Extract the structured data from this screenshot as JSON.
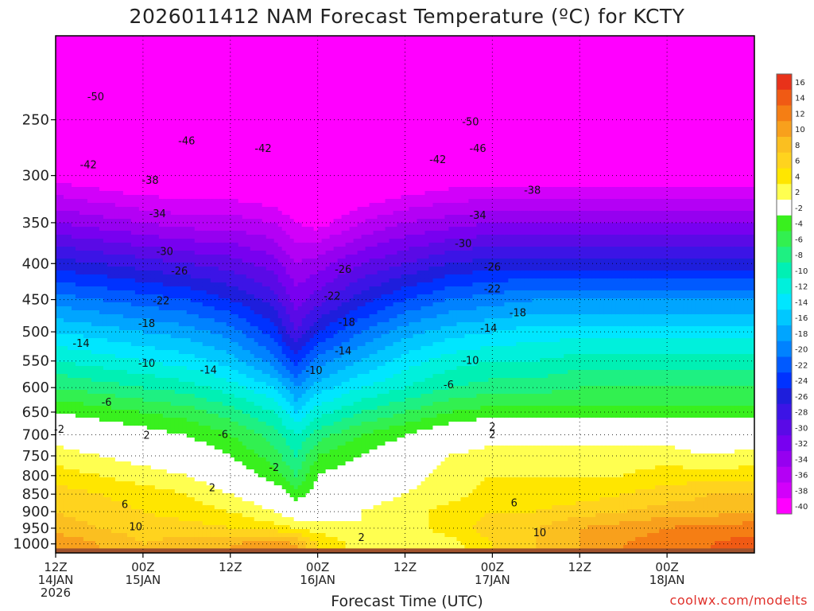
{
  "chart_data": {
    "type": "heatmap",
    "title": "2026011412 NAM Forecast Temperature (ºC) for KCTY",
    "xlabel": "Forecast Time (UTC)",
    "ylabel": "",
    "credit": "coolwx.com/modelts",
    "y_ticks": [
      250,
      300,
      350,
      400,
      450,
      500,
      550,
      600,
      650,
      700,
      750,
      800,
      850,
      900,
      950,
      1000
    ],
    "x_ticks": [
      {
        "line1": "12Z",
        "line2": "14JAN",
        "line3": "2026"
      },
      {
        "line1": "00Z",
        "line2": "15JAN",
        "line3": ""
      },
      {
        "line1": "12Z",
        "line2": "",
        "line3": ""
      },
      {
        "line1": "00Z",
        "line2": "16JAN",
        "line3": ""
      },
      {
        "line1": "12Z",
        "line2": "",
        "line3": ""
      },
      {
        "line1": "00Z",
        "line2": "17JAN",
        "line3": ""
      },
      {
        "line1": "12Z",
        "line2": "",
        "line3": ""
      },
      {
        "line1": "00Z",
        "line2": "18JAN",
        "line3": ""
      }
    ],
    "time_hours": [
      0,
      6,
      12,
      18,
      24,
      30,
      33,
      36,
      42,
      48,
      54,
      60,
      66,
      72,
      78,
      84,
      90,
      96
    ],
    "levels_hpa": [
      1000,
      950,
      900,
      850,
      800,
      750,
      700,
      650,
      600,
      550,
      500,
      450,
      400,
      350,
      300,
      250,
      200
    ],
    "temperature_c": [
      [
        12,
        10,
        8,
        9,
        10,
        11,
        10,
        6,
        3,
        2,
        3,
        6,
        8,
        10,
        12,
        13,
        14,
        15
      ],
      [
        9,
        8,
        7,
        7,
        6,
        5,
        4,
        3,
        2,
        3,
        5,
        7,
        8,
        10,
        11,
        12,
        13,
        13
      ],
      [
        8,
        7,
        6,
        5,
        4,
        2,
        0,
        1,
        2,
        3,
        5,
        6,
        6,
        7,
        8,
        9,
        9,
        10
      ],
      [
        7,
        6,
        5,
        4,
        2,
        0,
        -3,
        -1,
        1,
        2,
        3,
        5,
        5,
        5,
        6,
        7,
        8,
        8
      ],
      [
        5,
        4,
        3,
        2,
        0,
        -3,
        -6,
        -2,
        0,
        1,
        3,
        4,
        4,
        4,
        4,
        5,
        5,
        5
      ],
      [
        3,
        2,
        1,
        0,
        -2,
        -5,
        -8,
        -4,
        -2,
        0,
        2,
        3,
        3,
        3,
        3,
        3,
        2,
        3
      ],
      [
        1,
        0,
        -1,
        -2,
        -4,
        -7,
        -10,
        -7,
        -4,
        -2,
        0,
        1,
        1,
        1,
        1,
        1,
        0,
        0
      ],
      [
        -2,
        -3,
        -4,
        -5,
        -7,
        -10,
        -14,
        -11,
        -8,
        -6,
        -4,
        -3,
        -3,
        -3,
        -3,
        -3,
        -3,
        -3
      ],
      [
        -6,
        -7,
        -8,
        -9,
        -11,
        -14,
        -18,
        -15,
        -12,
        -10,
        -8,
        -7,
        -7,
        -6,
        -6,
        -6,
        -6,
        -6
      ],
      [
        -10,
        -11,
        -12,
        -13,
        -15,
        -19,
        -23,
        -19,
        -16,
        -13,
        -11,
        -10,
        -10,
        -9,
        -9,
        -9,
        -9,
        -9
      ],
      [
        -14,
        -15,
        -16,
        -17,
        -19,
        -23,
        -28,
        -24,
        -20,
        -17,
        -15,
        -14,
        -13,
        -13,
        -13,
        -13,
        -13,
        -13
      ],
      [
        -19,
        -20,
        -21,
        -22,
        -24,
        -27,
        -31,
        -29,
        -25,
        -22,
        -20,
        -19,
        -18,
        -18,
        -18,
        -18,
        -18,
        -18
      ],
      [
        -25,
        -26,
        -27,
        -28,
        -29,
        -31,
        -34,
        -33,
        -30,
        -28,
        -26,
        -25,
        -25,
        -25,
        -25,
        -25,
        -25,
        -25
      ],
      [
        -32,
        -33,
        -34,
        -35,
        -35,
        -36,
        -38,
        -39,
        -36,
        -34,
        -33,
        -32,
        -32,
        -32,
        -32,
        -32,
        -32,
        -32
      ],
      [
        -39,
        -40,
        -41,
        -41,
        -41,
        -42,
        -43,
        -44,
        -42,
        -41,
        -40,
        -40,
        -40,
        -40,
        -40,
        -40,
        -40,
        -40
      ],
      [
        -46,
        -47,
        -48,
        -48,
        -48,
        -49,
        -49,
        -48,
        -47,
        -47,
        -47,
        -47,
        -48,
        -48,
        -48,
        -48,
        -48,
        -48
      ],
      [
        -53,
        -53,
        -53,
        -53,
        -53,
        -53,
        -52,
        -52,
        -52,
        -52,
        -52,
        -53,
        -53,
        -53,
        -53,
        -53,
        -53,
        -53
      ]
    ],
    "contour_labels": [
      {
        "text": "-50",
        "t": 5.5,
        "p": 232
      },
      {
        "text": "-46",
        "t": 18,
        "p": 268
      },
      {
        "text": "-42",
        "t": 4.5,
        "p": 290
      },
      {
        "text": "-38",
        "t": 13,
        "p": 305
      },
      {
        "text": "-34",
        "t": 14,
        "p": 340
      },
      {
        "text": "-30",
        "t": 15,
        "p": 385
      },
      {
        "text": "-26",
        "t": 17,
        "p": 410
      },
      {
        "text": "-22",
        "t": 14.5,
        "p": 452
      },
      {
        "text": "-18",
        "t": 12.5,
        "p": 487
      },
      {
        "text": "-14",
        "t": 3.5,
        "p": 520
      },
      {
        "text": "-10",
        "t": 12.5,
        "p": 555
      },
      {
        "text": "-6",
        "t": 7,
        "p": 630
      },
      {
        "text": "-2",
        "t": 0.5,
        "p": 688
      },
      {
        "text": "2",
        "t": 12.5,
        "p": 702
      },
      {
        "text": "6",
        "t": 9.5,
        "p": 880
      },
      {
        "text": "10",
        "t": 11,
        "p": 947
      },
      {
        "text": "-14",
        "t": 21,
        "p": 567
      },
      {
        "text": "-10",
        "t": 35.5,
        "p": 568
      },
      {
        "text": "-6",
        "t": 23,
        "p": 700
      },
      {
        "text": "-2",
        "t": 30,
        "p": 780
      },
      {
        "text": "2",
        "t": 21.5,
        "p": 833
      },
      {
        "text": "-42",
        "t": 28.5,
        "p": 275
      },
      {
        "text": "-26",
        "t": 39.5,
        "p": 408
      },
      {
        "text": "-22",
        "t": 38,
        "p": 445
      },
      {
        "text": "-18",
        "t": 40,
        "p": 485
      },
      {
        "text": "-14",
        "t": 39.5,
        "p": 533
      },
      {
        "text": "2",
        "t": 42,
        "p": 980
      },
      {
        "text": "-42",
        "t": 52.5,
        "p": 285
      },
      {
        "text": "-46",
        "t": 58,
        "p": 275
      },
      {
        "text": "-50",
        "t": 57,
        "p": 252
      },
      {
        "text": "-34",
        "t": 58,
        "p": 342
      },
      {
        "text": "-30",
        "t": 56,
        "p": 375
      },
      {
        "text": "-38",
        "t": 65.5,
        "p": 315
      },
      {
        "text": "-26",
        "t": 60,
        "p": 405
      },
      {
        "text": "-22",
        "t": 60,
        "p": 435
      },
      {
        "text": "-18",
        "t": 63.5,
        "p": 470
      },
      {
        "text": "-14",
        "t": 59.5,
        "p": 495
      },
      {
        "text": "-10",
        "t": 57,
        "p": 550
      },
      {
        "text": "-6",
        "t": 54,
        "p": 595
      },
      {
        "text": "2",
        "t": 60,
        "p": 683
      },
      {
        "text": "2",
        "t": 60,
        "p": 700
      },
      {
        "text": "6",
        "t": 63,
        "p": 875
      },
      {
        "text": "10",
        "t": 66.5,
        "p": 965
      }
    ],
    "colorbar": {
      "labels": [
        16,
        14,
        12,
        10,
        8,
        6,
        4,
        2,
        -2,
        -4,
        -6,
        -8,
        -10,
        -12,
        -14,
        -16,
        -18,
        -20,
        -22,
        -24,
        -26,
        -28,
        -30,
        -32,
        -34,
        -36,
        -38,
        -40
      ],
      "colors": [
        "#e8321a",
        "#f05a14",
        "#f57e14",
        "#f8a01c",
        "#fbbf20",
        "#ffd31e",
        "#ffe600",
        "#ffff50",
        "#ffffff",
        "#39f01e",
        "#32f050",
        "#1ef082",
        "#00f0b4",
        "#00f0dc",
        "#00e6ff",
        "#00c8ff",
        "#00a5ff",
        "#0082ff",
        "#005aff",
        "#0032ff",
        "#1e1edc",
        "#3c14e6",
        "#5a0ae6",
        "#7800f0",
        "#9600f0",
        "#b400f5",
        "#d200fa",
        "#ff00ff"
      ]
    }
  }
}
